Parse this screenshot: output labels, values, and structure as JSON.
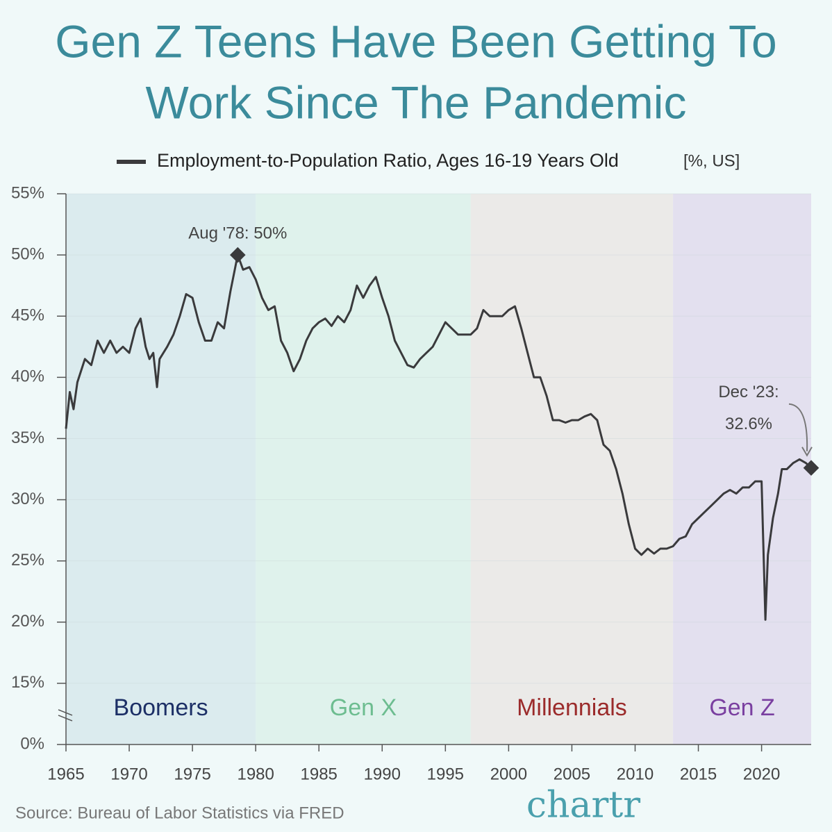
{
  "chart_data": {
    "type": "line",
    "title_lines": [
      "Gen Z Teens Have Been Getting To",
      "Work Since The Pandemic"
    ],
    "series": [
      {
        "name": "Employment-to-Population Ratio, Ages 16-19 Years Old",
        "unit_note": "[%, US]",
        "color": "#3a3a3c",
        "x": [
          1965.0,
          1965.3,
          1965.6,
          1965.9,
          1966.5,
          1967.0,
          1967.5,
          1968.0,
          1968.5,
          1969.0,
          1969.5,
          1970.0,
          1970.5,
          1970.9,
          1971.3,
          1971.6,
          1971.9,
          1972.2,
          1972.4,
          1973.0,
          1973.5,
          1974.0,
          1974.5,
          1975.0,
          1975.5,
          1976.0,
          1976.5,
          1977.0,
          1977.5,
          1978.0,
          1978.58,
          1979.0,
          1979.5,
          1980.0,
          1980.5,
          1981.0,
          1981.5,
          1982.0,
          1982.5,
          1983.0,
          1983.5,
          1984.0,
          1984.5,
          1985.0,
          1985.5,
          1986.0,
          1986.5,
          1987.0,
          1987.5,
          1988.0,
          1988.5,
          1989.0,
          1989.5,
          1990.0,
          1990.5,
          1991.0,
          1991.5,
          1992.0,
          1992.5,
          1993.0,
          1993.5,
          1994.0,
          1994.5,
          1995.0,
          1995.5,
          1996.0,
          1996.5,
          1997.0,
          1997.5,
          1998.0,
          1998.5,
          1999.0,
          1999.5,
          2000.0,
          2000.5,
          2001.0,
          2001.5,
          2002.0,
          2002.5,
          2003.0,
          2003.5,
          2004.0,
          2004.5,
          2005.0,
          2005.5,
          2006.0,
          2006.5,
          2007.0,
          2007.5,
          2008.0,
          2008.5,
          2009.0,
          2009.5,
          2010.0,
          2010.5,
          2011.0,
          2011.5,
          2012.0,
          2012.5,
          2013.0,
          2013.5,
          2014.0,
          2014.5,
          2015.0,
          2015.5,
          2016.0,
          2016.5,
          2017.0,
          2017.5,
          2018.0,
          2018.5,
          2019.0,
          2019.5,
          2020.0,
          2020.3,
          2020.5,
          2020.9,
          2021.3,
          2021.6,
          2022.0,
          2022.5,
          2023.0,
          2023.5,
          2023.92
        ],
        "values": [
          35.8,
          38.8,
          37.4,
          39.6,
          41.5,
          41.0,
          43.0,
          42.0,
          43.0,
          42.0,
          42.5,
          42.0,
          44.0,
          44.8,
          42.5,
          41.5,
          42.0,
          39.2,
          41.5,
          42.5,
          43.5,
          45.0,
          46.8,
          46.5,
          44.5,
          43.0,
          43.0,
          44.5,
          44.0,
          47.0,
          50.0,
          48.8,
          49.0,
          48.0,
          46.5,
          45.5,
          45.8,
          43.0,
          42.0,
          40.5,
          41.5,
          43.0,
          44.0,
          44.5,
          44.8,
          44.2,
          45.0,
          44.5,
          45.5,
          47.5,
          46.5,
          47.5,
          48.2,
          46.5,
          45.0,
          43.0,
          42.0,
          41.0,
          40.8,
          41.5,
          42.0,
          42.5,
          43.5,
          44.5,
          44.0,
          43.5,
          43.5,
          43.5,
          44.0,
          45.5,
          45.0,
          45.0,
          45.0,
          45.5,
          45.8,
          44.0,
          42.0,
          40.0,
          40.0,
          38.5,
          36.5,
          36.5,
          36.3,
          36.5,
          36.5,
          36.8,
          37.0,
          36.5,
          34.5,
          34.0,
          32.5,
          30.5,
          28.0,
          26.0,
          25.5,
          26.0,
          25.6,
          26.0,
          26.0,
          26.2,
          26.8,
          27.0,
          28.0,
          28.5,
          29.0,
          29.5,
          30.0,
          30.5,
          30.8,
          30.5,
          31.0,
          31.0,
          31.5,
          31.5,
          20.2,
          25.5,
          28.5,
          30.5,
          32.5,
          32.5,
          33.0,
          33.3,
          33.0,
          32.6
        ]
      }
    ],
    "generations": [
      {
        "name": "Boomers",
        "from": 1965,
        "to": 1980,
        "color": "#dbebee",
        "label_color": "#1c2f66"
      },
      {
        "name": "Gen X",
        "from": 1980,
        "to": 1997,
        "color": "#dff2ec",
        "label_color": "#6dbd90"
      },
      {
        "name": "Millennials",
        "from": 1997,
        "to": 2013,
        "color": "#ebeae8",
        "label_color": "#9b2b2b"
      },
      {
        "name": "Gen Z",
        "from": 2013,
        "to": 2023.92,
        "color": "#e3e0ef",
        "label_color": "#7a3fa0"
      }
    ],
    "annotations": [
      {
        "lines": [
          "Aug '78: 50%"
        ],
        "x": 1978.58,
        "y": 50
      },
      {
        "lines": [
          "Dec '23:",
          "32.6%"
        ],
        "x": 2023.92,
        "y": 32.6
      }
    ],
    "xlim": [
      1965,
      2023.92
    ],
    "xticks": [
      1965,
      1970,
      1975,
      1980,
      1985,
      1990,
      1995,
      2000,
      2005,
      2010,
      2015,
      2020
    ],
    "ylim": [
      0,
      55
    ],
    "y_axis_break": true,
    "yticks": [
      {
        "value": 0,
        "label": "0%"
      },
      {
        "value": 15,
        "label": "15%"
      },
      {
        "value": 20,
        "label": "20%"
      },
      {
        "value": 25,
        "label": "25%"
      },
      {
        "value": 30,
        "label": "30%"
      },
      {
        "value": 35,
        "label": "35%"
      },
      {
        "value": 40,
        "label": "40%"
      },
      {
        "value": 45,
        "label": "45%"
      },
      {
        "value": 50,
        "label": "50%"
      },
      {
        "value": 55,
        "label": "55%"
      }
    ],
    "grid": true,
    "source": "Source: Bureau of Labor Statistics via FRED",
    "logo": "chartr"
  }
}
